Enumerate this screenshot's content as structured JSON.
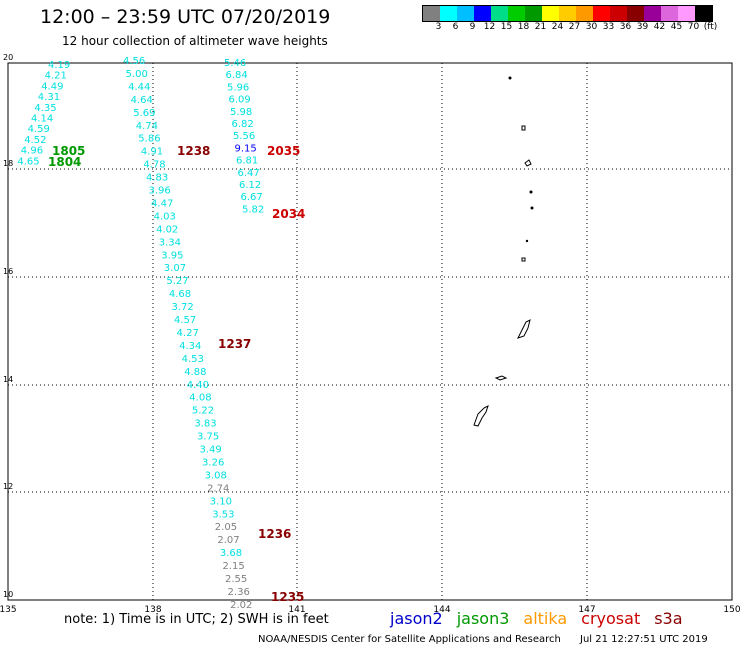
{
  "header": {
    "title": "12:00 – 23:59 UTC 07/20/2019",
    "subtitle": "12 hour collection of altimeter wave heights"
  },
  "colorbar": {
    "colors": [
      "#808080",
      "#00ffff",
      "#00bfff",
      "#0000ff",
      "#00dd88",
      "#00cc00",
      "#009900",
      "#ffff00",
      "#ffcc00",
      "#ff9900",
      "#ff0000",
      "#cc0000",
      "#880000",
      "#990099",
      "#dd66dd",
      "#ff99ff",
      "#000000"
    ],
    "labels": [
      "3",
      "6",
      "9",
      "12",
      "15",
      "18",
      "21",
      "24",
      "27",
      "30",
      "33",
      "36",
      "39",
      "42",
      "45",
      "70",
      "(ft)"
    ]
  },
  "axes": {
    "lon_ticks": [
      "135",
      "138",
      "141",
      "144",
      "147",
      "150"
    ],
    "lat_ticks": [
      "20",
      "18",
      "16",
      "14",
      "12",
      "10"
    ]
  },
  "tracks": {
    "track_a": {
      "values": [
        "4.19",
        "4.21",
        "4.49",
        "4.31",
        "4.35",
        "4.14",
        "4.59",
        "4.52",
        "4.96",
        "4.65"
      ],
      "labels": [
        "1805",
        "1804"
      ]
    },
    "track_b": {
      "values": [
        "4.56",
        "5.00",
        "4.44",
        "4.64",
        "5.69",
        "4.74",
        "5.86",
        "4.91",
        "4.78",
        "4.83",
        "3.96",
        "4.47",
        "4.03",
        "4.02",
        "3.34",
        "3.95",
        "3.07",
        "5.27",
        "4.68",
        "3.72",
        "4.57",
        "4.27",
        "4.34",
        "4.53",
        "4.88",
        "4.40",
        "4.08",
        "5.22",
        "3.83",
        "3.75",
        "3.49",
        "3.26",
        "3.08",
        "2.74",
        "3.10",
        "3.53",
        "2.05",
        "2.07",
        "3.68",
        "2.15",
        "2.55",
        "2.36",
        "2.02"
      ],
      "labels": [
        "1238",
        "1237",
        "1236",
        "1235"
      ]
    },
    "track_c": {
      "values": [
        "5.46",
        "6.84",
        "5.96",
        "6.09",
        "5.98",
        "6.82",
        "5.56",
        "9.15",
        "6.81",
        "6.47",
        "6.12",
        "6.67",
        "5.82"
      ],
      "labels": [
        "2035",
        "2034"
      ]
    }
  },
  "footer": {
    "note": "note:  1) Time is in UTC;  2) SWH is in feet",
    "legend": [
      {
        "name": "jason2",
        "color": "#0000cc"
      },
      {
        "name": "jason3",
        "color": "#009900"
      },
      {
        "name": "altika",
        "color": "#ff9900"
      },
      {
        "name": "cryosat",
        "color": "#cc0000"
      },
      {
        "name": "s3a",
        "color": "#880000"
      }
    ],
    "credit": "NOAA/NESDIS Center for Satellite Applications and Research",
    "timestamp": "Jul 21 12:27:51 UTC 2019"
  },
  "colors": {
    "swh_low": "#808080",
    "swh_cyan": "#00e0e0",
    "swh_blue": "#0000ff",
    "jason3": "#009900",
    "cryosat": "#cc0000",
    "s3a": "#880000"
  }
}
